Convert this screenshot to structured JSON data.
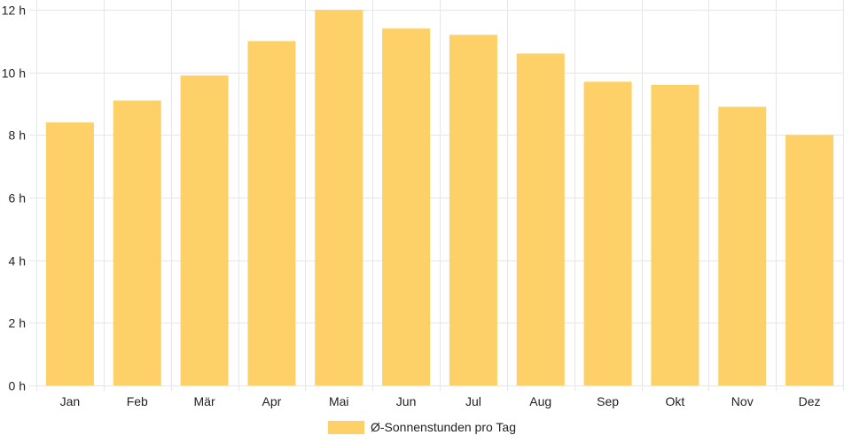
{
  "chart_data": {
    "type": "bar",
    "categories": [
      "Jan",
      "Feb",
      "Mär",
      "Apr",
      "Mai",
      "Jun",
      "Jul",
      "Aug",
      "Sep",
      "Okt",
      "Nov",
      "Dez"
    ],
    "series": [
      {
        "name": "Ø-Sonnenstunden pro Tag",
        "values": [
          8.4,
          9.1,
          9.9,
          11.0,
          12.0,
          11.4,
          11.2,
          10.6,
          9.7,
          9.6,
          8.9,
          8.0
        ],
        "color": "#fdd068"
      }
    ],
    "ylim": [
      0,
      12
    ],
    "ytick_values": [
      0,
      2,
      4,
      6,
      8,
      10,
      12
    ],
    "ytick_labels": [
      "0 h",
      "2 h",
      "4 h",
      "6 h",
      "8 h",
      "10 h",
      "12 h"
    ],
    "grid": true,
    "legend_position": "bottom"
  }
}
